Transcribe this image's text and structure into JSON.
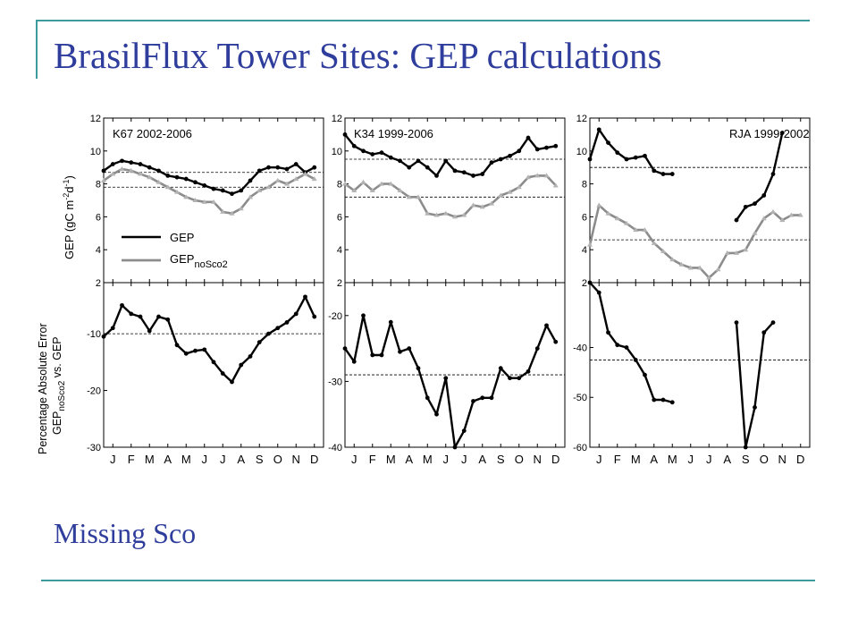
{
  "slide": {
    "title": "BrasilFlux Tower Sites: GEP calculations",
    "subtitle": "Missing Sco"
  },
  "colors": {
    "accent": "#3d9a9e",
    "title_text": "#2f3d9c",
    "gep_line": "#000000",
    "gep_nosco2_line": "#8c8c8c",
    "nosco2_points": "#b3b3b3"
  },
  "chart_data": [
    {
      "type": "line",
      "site_label": "K67 2002-2006",
      "panel": "GEP",
      "ylabel": "GEP (gC m-2d-1)",
      "ylim": [
        2,
        12
      ],
      "yticks": [
        2,
        4,
        6,
        8,
        10,
        12
      ],
      "x": [
        0.5,
        1,
        1.5,
        2,
        2.5,
        3,
        3.5,
        4,
        4.5,
        5,
        5.5,
        6,
        6.5,
        7,
        7.5,
        8,
        8.5,
        9,
        9.5,
        10,
        10.5,
        11,
        11.5,
        12
      ],
      "series": [
        {
          "name": "GEP",
          "values": [
            8.8,
            9.2,
            9.4,
            9.3,
            9.2,
            9.0,
            8.8,
            8.5,
            8.4,
            8.3,
            8.1,
            7.9,
            7.7,
            7.6,
            7.4,
            7.6,
            8.2,
            8.8,
            9.0,
            9.0,
            8.9,
            9.2,
            8.7,
            9.0
          ]
        },
        {
          "name": "GEP noSco2",
          "values": [
            8.2,
            8.6,
            8.9,
            8.8,
            8.6,
            8.4,
            8.1,
            7.8,
            7.5,
            7.2,
            7.0,
            6.9,
            6.9,
            6.3,
            6.2,
            6.5,
            7.2,
            7.6,
            7.8,
            8.2,
            8.0,
            8.3,
            8.6,
            8.3
          ]
        }
      ],
      "reference_lines": [
        8.7,
        7.8
      ],
      "legend": [
        "GEP",
        "GEP noSco2"
      ]
    },
    {
      "type": "line",
      "site_label": "K34 1999-2006",
      "panel": "GEP",
      "ylim": [
        2,
        12
      ],
      "yticks": [
        2,
        4,
        6,
        8,
        10,
        12
      ],
      "x": [
        0.5,
        1,
        1.5,
        2,
        2.5,
        3,
        3.5,
        4,
        4.5,
        5,
        5.5,
        6,
        6.5,
        7,
        7.5,
        8,
        8.5,
        9,
        9.5,
        10,
        10.5,
        11,
        11.5,
        12
      ],
      "series": [
        {
          "name": "GEP",
          "values": [
            11.0,
            10.3,
            10.0,
            9.8,
            9.9,
            9.6,
            9.4,
            9.0,
            9.4,
            9.0,
            8.5,
            9.4,
            8.8,
            8.7,
            8.5,
            8.6,
            9.3,
            9.5,
            9.7,
            10.0,
            10.8,
            10.1,
            10.2,
            10.3
          ]
        },
        {
          "name": "GEP noSco2",
          "values": [
            8.0,
            7.6,
            8.1,
            7.6,
            8.0,
            8.0,
            7.6,
            7.2,
            7.2,
            6.2,
            6.1,
            6.2,
            6.0,
            6.1,
            6.7,
            6.6,
            6.8,
            7.3,
            7.5,
            7.8,
            8.4,
            8.5,
            8.5,
            7.9
          ]
        }
      ],
      "reference_lines": [
        9.5,
        7.2
      ]
    },
    {
      "type": "line",
      "site_label": "RJA 1999-2002",
      "panel": "GEP",
      "ylim": [
        2,
        12
      ],
      "yticks": [
        2,
        4,
        6,
        8,
        10,
        12
      ],
      "x": [
        0.5,
        1,
        1.5,
        2,
        2.5,
        3,
        3.5,
        4,
        4.5,
        5,
        5.5,
        6,
        6.5,
        7,
        7.5,
        8,
        8.5,
        9,
        9.5,
        10,
        10.5,
        11,
        11.5,
        12
      ],
      "series": [
        {
          "name": "GEP",
          "values": [
            9.5,
            11.3,
            10.5,
            9.9,
            9.5,
            9.6,
            9.7,
            8.8,
            8.6,
            8.6,
            null,
            null,
            null,
            null,
            null,
            null,
            5.8,
            6.6,
            6.8,
            7.3,
            8.6,
            11.1,
            null,
            null
          ]
        },
        {
          "name": "GEP noSco2",
          "values": [
            4.3,
            6.7,
            6.2,
            5.9,
            5.6,
            5.2,
            5.2,
            4.4,
            3.9,
            3.4,
            3.1,
            2.9,
            2.9,
            2.3,
            2.8,
            3.8,
            3.8,
            4.0,
            5.0,
            5.9,
            6.3,
            5.8,
            6.1,
            6.1
          ]
        }
      ],
      "reference_lines": [
        9.0,
        4.6
      ]
    },
    {
      "type": "line",
      "site_label": "K67 2002-2006",
      "panel": "Percentage Absolute Error",
      "ylabel": "Percentage Absolute Error GEP noSco2 vs. GEP",
      "ylim": [
        -30,
        -1
      ],
      "yticks": [
        -30,
        -20,
        -10
      ],
      "x": [
        0.5,
        1,
        1.5,
        2,
        2.5,
        3,
        3.5,
        4,
        4.5,
        5,
        5.5,
        6,
        6.5,
        7,
        7.5,
        8,
        8.5,
        9,
        9.5,
        10,
        10.5,
        11,
        11.5,
        12
      ],
      "series": [
        {
          "name": "GEP",
          "values": [
            -10.5,
            -9.0,
            -5.0,
            -6.5,
            -7.0,
            -9.5,
            -7.0,
            -7.5,
            -12.0,
            -13.5,
            -13.0,
            -12.8,
            -15.0,
            -17.0,
            -18.5,
            -15.5,
            -14.0,
            -11.5,
            -10.0,
            -9.0,
            -8.0,
            -6.5,
            -3.5,
            -7.0
          ]
        }
      ],
      "reference_lines": [
        -10.0
      ],
      "xticklabels": [
        "J",
        "F",
        "M",
        "A",
        "M",
        "J",
        "J",
        "A",
        "S",
        "O",
        "N",
        "D"
      ]
    },
    {
      "type": "line",
      "site_label": "K34 1999-2006",
      "panel": "Percentage Absolute Error",
      "ylim": [
        -40,
        -15
      ],
      "yticks": [
        -40,
        -30,
        -20
      ],
      "x": [
        0.5,
        1,
        1.5,
        2,
        2.5,
        3,
        3.5,
        4,
        4.5,
        5,
        5.5,
        6,
        6.5,
        7,
        7.5,
        8,
        8.5,
        9,
        9.5,
        10,
        10.5,
        11,
        11.5,
        12
      ],
      "series": [
        {
          "name": "GEP",
          "values": [
            -25.0,
            -27.0,
            -20.0,
            -26.0,
            -26.0,
            -21.0,
            -25.5,
            -25.0,
            -28.0,
            -32.5,
            -35.0,
            -29.5,
            -40.0,
            -37.5,
            -33.0,
            -32.5,
            -32.5,
            -28.0,
            -29.5,
            -29.5,
            -28.5,
            -25.0,
            -21.5,
            -24.0
          ]
        }
      ],
      "reference_lines": [
        -29.0
      ],
      "xticklabels": [
        "J",
        "F",
        "M",
        "A",
        "M",
        "J",
        "J",
        "A",
        "S",
        "O",
        "N",
        "D"
      ]
    },
    {
      "type": "line",
      "site_label": "RJA 1999-2002",
      "panel": "Percentage Absolute Error",
      "ylim": [
        -60,
        -27
      ],
      "yticks": [
        -60,
        -50,
        -40
      ],
      "x": [
        0.5,
        1,
        1.5,
        2,
        2.5,
        3,
        3.5,
        4,
        4.5,
        5,
        5.5,
        6,
        6.5,
        7,
        7.5,
        8,
        8.5,
        9,
        9.5,
        10,
        10.5,
        11,
        11.5,
        12
      ],
      "series": [
        {
          "name": "GEP",
          "values": [
            -27.0,
            -29.0,
            -37.0,
            -39.5,
            -40.0,
            -42.5,
            -45.5,
            -50.5,
            -50.5,
            -51.0,
            null,
            null,
            null,
            null,
            null,
            null,
            -35.0,
            -60.0,
            -52.0,
            -37.0,
            -35.0,
            null,
            null,
            null
          ]
        }
      ],
      "reference_lines": [
        -42.5
      ],
      "xticklabels": [
        "J",
        "F",
        "M",
        "A",
        "M",
        "J",
        "J",
        "A",
        "S",
        "O",
        "N",
        "D"
      ]
    }
  ]
}
